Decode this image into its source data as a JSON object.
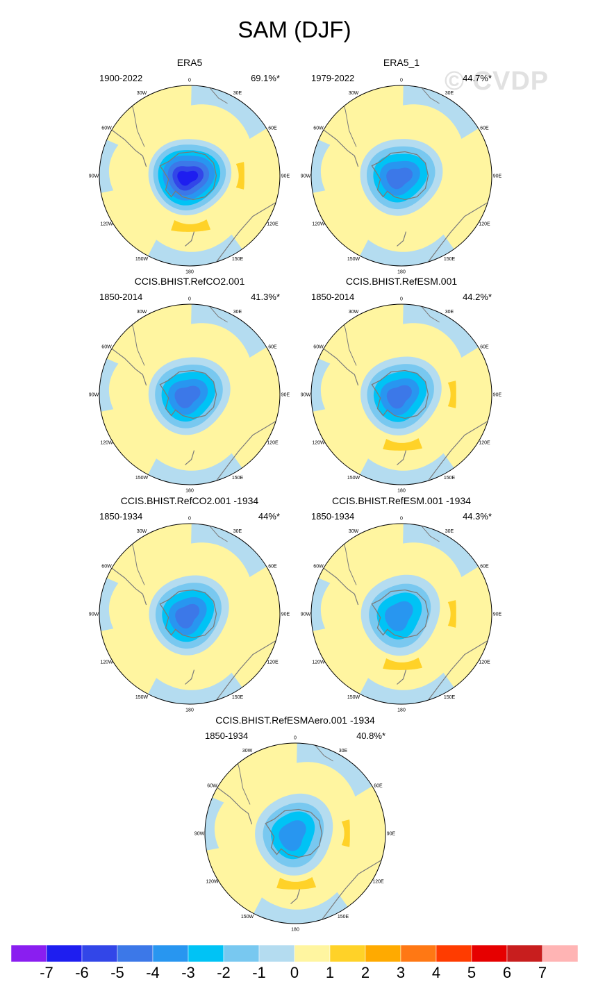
{
  "title": "SAM (DJF)",
  "watermark": "© CVDP",
  "lon_ticks": [
    "0",
    "30E",
    "60E",
    "90E",
    "120E",
    "150E",
    "180",
    "150W",
    "120W",
    "90W",
    "60W",
    "30W"
  ],
  "panels": [
    {
      "name": "ERA5",
      "period": "1900-2022",
      "percent": "69.1%*",
      "pole_min": -7,
      "ring_max": 3
    },
    {
      "name": "ERA5_1",
      "period": "1979-2022",
      "percent": "44.7%*",
      "pole_min": -5,
      "ring_max": 2
    },
    {
      "name": "CCIS.BHIST.RefCO2.001",
      "period": "1850-2014",
      "percent": "41.3%*",
      "pole_min": -5,
      "ring_max": 2
    },
    {
      "name": "CCIS.BHIST.RefESM.001",
      "period": "1850-2014",
      "percent": "44.2%*",
      "pole_min": -5,
      "ring_max": 3
    },
    {
      "name": "CCIS.BHIST.RefCO2.001 -1934",
      "period": "1850-1934",
      "percent": "44%*",
      "pole_min": -5,
      "ring_max": 2
    },
    {
      "name": "CCIS.BHIST.RefESM.001 -1934",
      "period": "1850-1934",
      "percent": "44.3%*",
      "pole_min": -4,
      "ring_max": 3
    },
    {
      "name": "CCIS.BHIST.RefESMAero.001 -1934",
      "period": "1850-1934",
      "percent": "40.8%*",
      "pole_min": -4,
      "ring_max": 3
    }
  ],
  "colorbar": {
    "labels": [
      "-7",
      "-6",
      "-5",
      "-4",
      "-3",
      "-2",
      "-1",
      "0",
      "1",
      "2",
      "3",
      "4",
      "5",
      "6",
      "7"
    ],
    "colors": [
      "#8a1ef0",
      "#1e1ef0",
      "#3246e8",
      "#3c78e8",
      "#2896f0",
      "#00c3f5",
      "#78c8f0",
      "#b4dcf0",
      "#fff5a0",
      "#ffd228",
      "#ffaa00",
      "#ff7814",
      "#ff3c00",
      "#e60000",
      "#c81e1e",
      "#ffb4b4"
    ]
  }
}
